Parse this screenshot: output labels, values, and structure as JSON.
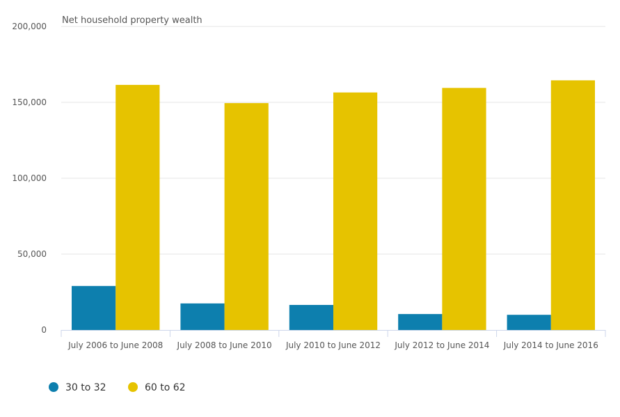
{
  "chart_data": {
    "type": "bar",
    "title": "",
    "xlabel": "",
    "ylabel": "Net household property wealth",
    "ylim": [
      0,
      200000
    ],
    "yticks": [
      0,
      50000,
      100000,
      150000,
      200000
    ],
    "ytick_labels": [
      "0",
      "50,000",
      "100,000",
      "150,000",
      "200,000"
    ],
    "categories": [
      "July 2006 to June 2008",
      "July 2008 to June 2010",
      "July 2010 to June 2012",
      "July 2012 to June 2014",
      "July 2014 to June 2016"
    ],
    "series": [
      {
        "name": "30 to 32",
        "color": "#0d7fae",
        "values": [
          29000,
          17500,
          16500,
          10500,
          10000
        ]
      },
      {
        "name": "60 to 62",
        "color": "#e6c300",
        "values": [
          161500,
          149500,
          156500,
          159500,
          164500
        ]
      }
    ],
    "grid": true,
    "legend_position": "bottom-left"
  }
}
